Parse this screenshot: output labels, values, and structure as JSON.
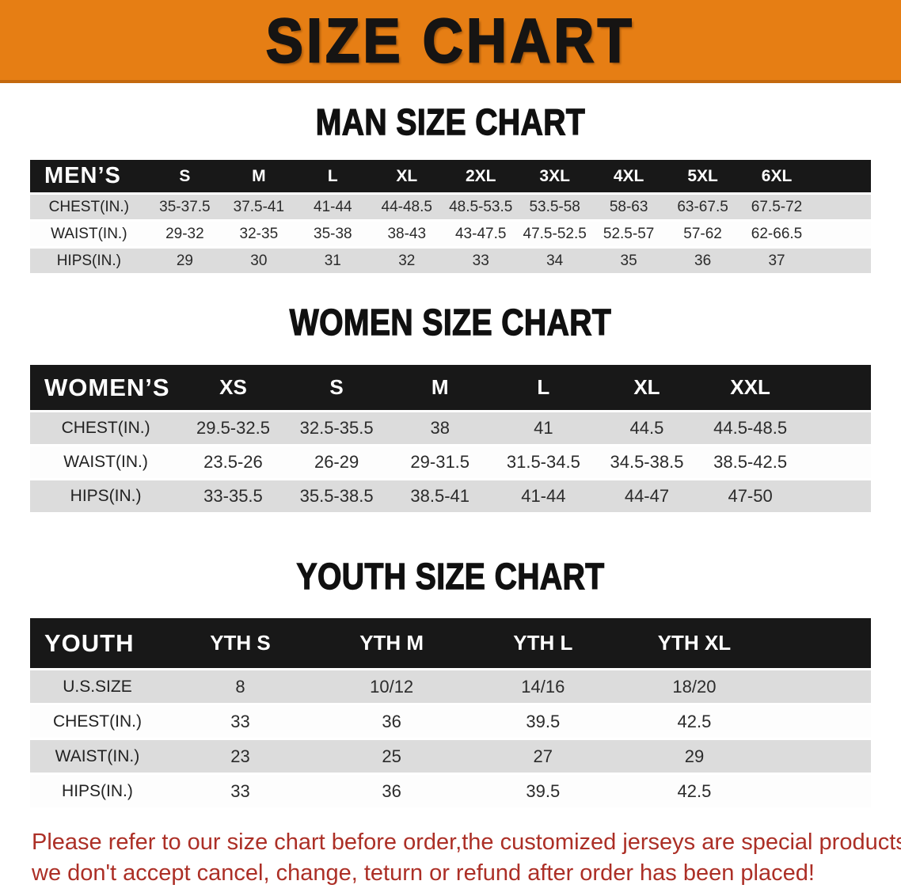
{
  "banner": {
    "title": "SIZE CHART"
  },
  "colors": {
    "banner_bg": "#e67e14",
    "banner_border": "#c4690e",
    "header_bar": "#181818",
    "header_text": "#ffffff",
    "stripe": "#dcdcdc",
    "text": "#2b2b2b",
    "footer_text": "#ac2f26"
  },
  "sections": [
    {
      "heading": "MAN SIZE CHART",
      "table": {
        "header_label": "MEN’S",
        "columns": [
          "S",
          "M",
          "L",
          "XL",
          "2XL",
          "3XL",
          "4XL",
          "5XL",
          "6XL"
        ],
        "rows": [
          {
            "label": "CHEST(IN.)",
            "values": [
              "35-37.5",
              "37.5-41",
              "41-44",
              "44-48.5",
              "48.5-53.5",
              "53.5-58",
              "58-63",
              "63-67.5",
              "67.5-72"
            ]
          },
          {
            "label": "WAIST(IN.)",
            "values": [
              "29-32",
              "32-35",
              "35-38",
              "38-43",
              "43-47.5",
              "47.5-52.5",
              "52.5-57",
              "57-62",
              "62-66.5"
            ]
          },
          {
            "label": "HIPS(IN.)",
            "values": [
              "29",
              "30",
              "31",
              "32",
              "33",
              "34",
              "35",
              "36",
              "37"
            ]
          }
        ]
      }
    },
    {
      "heading": "WOMEN SIZE CHART",
      "table": {
        "header_label": "WOMEN’S",
        "columns": [
          "XS",
          "S",
          "M",
          "L",
          "XL",
          "XXL"
        ],
        "rows": [
          {
            "label": "CHEST(IN.)",
            "values": [
              "29.5-32.5",
              "32.5-35.5",
              "38",
              "41",
              "44.5",
              "44.5-48.5"
            ]
          },
          {
            "label": "WAIST(IN.)",
            "values": [
              "23.5-26",
              "26-29",
              "29-31.5",
              "31.5-34.5",
              "34.5-38.5",
              "38.5-42.5"
            ]
          },
          {
            "label": "HIPS(IN.)",
            "values": [
              "33-35.5",
              "35.5-38.5",
              "38.5-41",
              "41-44",
              "44-47",
              "47-50"
            ]
          }
        ]
      }
    },
    {
      "heading": "YOUTH SIZE CHART",
      "table": {
        "header_label": "YOUTH",
        "columns": [
          "YTH S",
          "YTH M",
          "YTH L",
          "YTH XL"
        ],
        "rows": [
          {
            "label": "U.S.SIZE",
            "values": [
              "8",
              "10/12",
              "14/16",
              "18/20"
            ]
          },
          {
            "label": "CHEST(IN.)",
            "values": [
              "33",
              "36",
              "39.5",
              "42.5"
            ]
          },
          {
            "label": "WAIST(IN.)",
            "values": [
              "23",
              "25",
              "27",
              "29"
            ]
          },
          {
            "label": "HIPS(IN.)",
            "values": [
              "33",
              "36",
              "39.5",
              "42.5"
            ]
          }
        ]
      }
    }
  ],
  "footer": {
    "lines": [
      "Please refer to our size chart before order,the customized jerseys are special products,",
      "we don't accept cancel, change, teturn or refund after order has been placed!"
    ]
  }
}
